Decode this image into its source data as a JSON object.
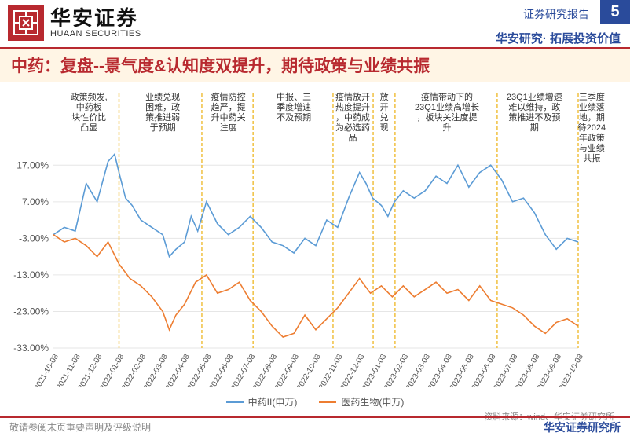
{
  "header": {
    "logo_cn": "华安证券",
    "logo_en": "HUAAN SECURITIES",
    "report_type": "证券研究报告",
    "page_number": "5",
    "sub_brand": "华安研究· 拓展投资价值"
  },
  "title": "中药：复盘--景气度&认知度双提升，期待政策与业绩共振",
  "chart": {
    "type": "line",
    "xlim": [
      "2021-10-08",
      "2023-10-08"
    ],
    "ylim": [
      -33,
      22
    ],
    "ytick_step": 10,
    "yticks": [
      -33,
      -23,
      -13,
      -3,
      7,
      17
    ],
    "ytick_labels": [
      "-33.00%",
      "-23.00%",
      "-13.00%",
      "-3.00%",
      "7.00%",
      "17.00%"
    ],
    "xticks": [
      "2021-10-08",
      "2021-11-08",
      "2021-12-08",
      "2022-01-08",
      "2022-02-08",
      "2022-03-08",
      "2022-04-08",
      "2022-05-08",
      "2022-06-08",
      "2022-07-08",
      "2022-08-08",
      "2022-09-08",
      "2022-10-08",
      "2022-11-08",
      "2022-12-08",
      "2023-01-08",
      "2023-02-08",
      "2023-03-08",
      "2023-04-08",
      "2023-05-08",
      "2023-06-08",
      "2023-07-08",
      "2023-08-08",
      "2023-09-08",
      "2023-10-08"
    ],
    "background_color": "#ffffff",
    "grid_color": "#e6e6e6",
    "divider_color": "#f0c040",
    "axis_fontsize": 11,
    "annotation_fontsize": 11,
    "line_width": 1.6,
    "dividers_x": [
      "2022-01-01",
      "2022-04-25",
      "2022-07-05",
      "2022-10-25",
      "2022-12-20",
      "2023-01-20",
      "2023-06-10",
      "2023-10-01"
    ],
    "annotations": [
      {
        "x": "2021-11-20",
        "lines": [
          "政策频发,",
          "中药板",
          "块性价比",
          "凸显"
        ]
      },
      {
        "x": "2022-03-01",
        "lines": [
          "业绩兑现",
          "困难，政",
          "策推进弱",
          "于预期"
        ]
      },
      {
        "x": "2022-06-01",
        "lines": [
          "疫情防控",
          "趋严，提",
          "升中药关",
          "注度"
        ]
      },
      {
        "x": "2022-09-01",
        "lines": [
          "中报、三",
          "季度增速",
          "不及预期"
        ]
      },
      {
        "x": "2022-11-22",
        "lines": [
          "疫情放开",
          "热度提升",
          "，中药成",
          "为必选药",
          "品"
        ]
      },
      {
        "x": "2023-01-05",
        "lines": [
          "放",
          "开",
          "兑",
          "现"
        ]
      },
      {
        "x": "2023-04-01",
        "lines": [
          "疫情带动下的",
          "23Q1业绩高增长",
          "，板块关注度提",
          "升"
        ]
      },
      {
        "x": "2023-08-01",
        "lines": [
          "23Q1业绩增速",
          "难以维持，政",
          "策推进不及预",
          "期"
        ]
      },
      {
        "x": "2023-10-20",
        "lines": [
          "三季度",
          "业绩落",
          "地，期",
          "待2024",
          "年政策",
          "与业绩",
          "共振"
        ]
      }
    ],
    "series": [
      {
        "name": "中药II(申万)",
        "color": "#5b9bd5",
        "values": [
          [
            0,
            -2
          ],
          [
            0.5,
            0
          ],
          [
            1,
            -1
          ],
          [
            1.5,
            12
          ],
          [
            2,
            7
          ],
          [
            2.5,
            18
          ],
          [
            2.8,
            20
          ],
          [
            3,
            15
          ],
          [
            3.3,
            8
          ],
          [
            3.6,
            6
          ],
          [
            4,
            2
          ],
          [
            4.5,
            0
          ],
          [
            5,
            -2
          ],
          [
            5.3,
            -8
          ],
          [
            5.6,
            -6
          ],
          [
            6,
            -4
          ],
          [
            6.3,
            3
          ],
          [
            6.6,
            -1
          ],
          [
            7,
            7
          ],
          [
            7.5,
            1
          ],
          [
            8,
            -2
          ],
          [
            8.5,
            0
          ],
          [
            9,
            3
          ],
          [
            9.5,
            0
          ],
          [
            10,
            -4
          ],
          [
            10.5,
            -5
          ],
          [
            11,
            -7
          ],
          [
            11.5,
            -3
          ],
          [
            12,
            -5
          ],
          [
            12.5,
            2
          ],
          [
            13,
            0
          ],
          [
            13.5,
            8
          ],
          [
            14,
            15
          ],
          [
            14.3,
            12
          ],
          [
            14.6,
            8
          ],
          [
            15,
            6
          ],
          [
            15.3,
            3
          ],
          [
            15.6,
            7
          ],
          [
            16,
            10
          ],
          [
            16.5,
            8
          ],
          [
            17,
            10
          ],
          [
            17.5,
            14
          ],
          [
            18,
            12
          ],
          [
            18.5,
            17
          ],
          [
            19,
            11
          ],
          [
            19.5,
            15
          ],
          [
            20,
            17
          ],
          [
            20.5,
            13
          ],
          [
            21,
            7
          ],
          [
            21.5,
            8
          ],
          [
            22,
            4
          ],
          [
            22.5,
            -2
          ],
          [
            23,
            -6
          ],
          [
            23.5,
            -3
          ],
          [
            24,
            -4
          ]
        ]
      },
      {
        "name": "医药生物(申万)",
        "color": "#ed7d31",
        "values": [
          [
            0,
            -2
          ],
          [
            0.5,
            -4
          ],
          [
            1,
            -3
          ],
          [
            1.5,
            -5
          ],
          [
            2,
            -8
          ],
          [
            2.5,
            -4
          ],
          [
            3,
            -10
          ],
          [
            3.5,
            -14
          ],
          [
            4,
            -16
          ],
          [
            4.5,
            -19
          ],
          [
            5,
            -23
          ],
          [
            5.3,
            -28
          ],
          [
            5.6,
            -24
          ],
          [
            6,
            -21
          ],
          [
            6.5,
            -15
          ],
          [
            7,
            -13
          ],
          [
            7.5,
            -18
          ],
          [
            8,
            -17
          ],
          [
            8.5,
            -15
          ],
          [
            9,
            -20
          ],
          [
            9.5,
            -23
          ],
          [
            10,
            -27
          ],
          [
            10.5,
            -30
          ],
          [
            11,
            -29
          ],
          [
            11.5,
            -24
          ],
          [
            12,
            -28
          ],
          [
            12.5,
            -25
          ],
          [
            13,
            -22
          ],
          [
            13.5,
            -18
          ],
          [
            14,
            -14
          ],
          [
            14.5,
            -18
          ],
          [
            15,
            -16
          ],
          [
            15.5,
            -19
          ],
          [
            16,
            -16
          ],
          [
            16.5,
            -19
          ],
          [
            17,
            -17
          ],
          [
            17.5,
            -15
          ],
          [
            18,
            -18
          ],
          [
            18.5,
            -17
          ],
          [
            19,
            -20
          ],
          [
            19.5,
            -16
          ],
          [
            20,
            -20
          ],
          [
            20.5,
            -21
          ],
          [
            21,
            -22
          ],
          [
            21.5,
            -24
          ],
          [
            22,
            -27
          ],
          [
            22.5,
            -29
          ],
          [
            23,
            -26
          ],
          [
            23.5,
            -25
          ],
          [
            24,
            -27
          ]
        ]
      }
    ],
    "legend": {
      "items": [
        {
          "label": "中药II(申万)",
          "color": "#5b9bd5"
        },
        {
          "label": "医药生物(申万)",
          "color": "#ed7d31"
        }
      ]
    }
  },
  "source": "资料来源：wind、华安证券研究所",
  "footer": {
    "left": "敬请参阅末页重要声明及评级说明",
    "right": "华安证券研究所"
  }
}
